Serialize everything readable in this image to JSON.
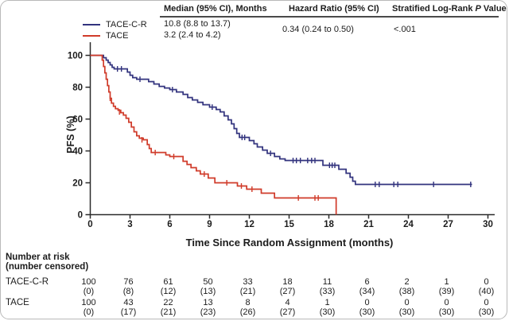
{
  "stats": {
    "headers": {
      "median": "Median (95% CI), Months",
      "hazard_ratio": "Hazard Ratio (95% CI)",
      "logrank_prefix": "Stratified Log-Rank ",
      "logrank_italic": "P",
      "logrank_suffix": " Value"
    },
    "median_tace_cr": "10.8 (8.8 to 13.7)",
    "median_tace": "3.2 (2.4 to 4.2)",
    "hazard_ratio_value": "0.34 (0.24 to 0.50)",
    "p_value": "<.001"
  },
  "legend": [
    {
      "label": "TACE-C-R",
      "color": "#32337e"
    },
    {
      "label": "TACE",
      "color": "#d03b2a"
    }
  ],
  "chart_data": {
    "type": "line",
    "subtype": "kaplan-meier-step",
    "title": "",
    "xlabel": "Time Since Random Assignment (months)",
    "ylabel": "PFS (%)",
    "xlim": [
      0,
      30
    ],
    "ylim": [
      0,
      100
    ],
    "xticks": [
      0,
      3,
      6,
      9,
      12,
      15,
      18,
      21,
      24,
      27,
      30
    ],
    "yticks": [
      0,
      20,
      40,
      60,
      80,
      100
    ],
    "grid": false,
    "legend_position": "top-left",
    "axis_color": "#2a2a2a",
    "series": [
      {
        "name": "TACE-C-R",
        "color": "#32337e",
        "median_months": 10.8,
        "points": [
          [
            0,
            100
          ],
          [
            1.0,
            98.5
          ],
          [
            1.2,
            97
          ],
          [
            1.35,
            95.5
          ],
          [
            1.5,
            94
          ],
          [
            1.65,
            92.5
          ],
          [
            1.8,
            91.5
          ],
          [
            2.8,
            89.5
          ],
          [
            3.0,
            87.5
          ],
          [
            3.2,
            86
          ],
          [
            3.5,
            85
          ],
          [
            4.4,
            83.5
          ],
          [
            4.8,
            82
          ],
          [
            5.2,
            80.5
          ],
          [
            5.6,
            79.5
          ],
          [
            6.0,
            78.5
          ],
          [
            6.5,
            77
          ],
          [
            7.0,
            75.5
          ],
          [
            7.35,
            73.5
          ],
          [
            7.7,
            72
          ],
          [
            8.1,
            70.5
          ],
          [
            8.5,
            69
          ],
          [
            9.0,
            67.5
          ],
          [
            9.5,
            66
          ],
          [
            9.8,
            64.5
          ],
          [
            10.1,
            62
          ],
          [
            10.4,
            59.5
          ],
          [
            10.65,
            57
          ],
          [
            10.85,
            54
          ],
          [
            11.05,
            51
          ],
          [
            11.25,
            48.5
          ],
          [
            12.0,
            46.5
          ],
          [
            12.35,
            44.5
          ],
          [
            12.6,
            42.5
          ],
          [
            13.0,
            40.5
          ],
          [
            13.35,
            38.5
          ],
          [
            13.9,
            36.5
          ],
          [
            14.3,
            35
          ],
          [
            14.7,
            34
          ],
          [
            17.55,
            31
          ],
          [
            18.75,
            28.5
          ],
          [
            19.3,
            26
          ],
          [
            19.6,
            23.5
          ],
          [
            19.8,
            21
          ],
          [
            20.0,
            19
          ],
          [
            28.8,
            19
          ]
        ],
        "censors": [
          [
            2.05,
            91.5
          ],
          [
            2.35,
            91.5
          ],
          [
            3.75,
            85
          ],
          [
            6.2,
            78.5
          ],
          [
            9.2,
            67.5
          ],
          [
            11.45,
            48.5
          ],
          [
            11.65,
            48.5
          ],
          [
            13.6,
            38.5
          ],
          [
            15.3,
            34
          ],
          [
            15.55,
            34
          ],
          [
            15.85,
            34
          ],
          [
            16.4,
            34
          ],
          [
            16.7,
            34
          ],
          [
            16.95,
            34
          ],
          [
            18.05,
            31
          ],
          [
            18.25,
            31
          ],
          [
            18.45,
            31
          ],
          [
            21.5,
            19
          ],
          [
            21.8,
            19
          ],
          [
            22.9,
            19
          ],
          [
            23.2,
            19
          ],
          [
            25.9,
            19
          ],
          [
            28.7,
            19
          ]
        ]
      },
      {
        "name": "TACE",
        "color": "#d03b2a",
        "median_months": 3.2,
        "points": [
          [
            0,
            100
          ],
          [
            0.9,
            97
          ],
          [
            1.0,
            93
          ],
          [
            1.1,
            89
          ],
          [
            1.2,
            85
          ],
          [
            1.3,
            81
          ],
          [
            1.4,
            77
          ],
          [
            1.5,
            73
          ],
          [
            1.6,
            70
          ],
          [
            1.75,
            68
          ],
          [
            1.9,
            66.5
          ],
          [
            2.1,
            65.5
          ],
          [
            2.3,
            64
          ],
          [
            2.5,
            62.5
          ],
          [
            2.7,
            60.5
          ],
          [
            2.9,
            58
          ],
          [
            3.1,
            55
          ],
          [
            3.3,
            52
          ],
          [
            3.5,
            49.5
          ],
          [
            3.7,
            48
          ],
          [
            4.0,
            47
          ],
          [
            4.3,
            44
          ],
          [
            4.45,
            41.5
          ],
          [
            4.6,
            39
          ],
          [
            5.7,
            37.5
          ],
          [
            6.0,
            36.5
          ],
          [
            7.0,
            33.5
          ],
          [
            7.3,
            31.5
          ],
          [
            7.6,
            29.5
          ],
          [
            8.0,
            27.5
          ],
          [
            8.3,
            25.5
          ],
          [
            8.9,
            23
          ],
          [
            9.4,
            20
          ],
          [
            11.1,
            18
          ],
          [
            11.8,
            16
          ],
          [
            12.9,
            13.5
          ],
          [
            13.9,
            10.5
          ],
          [
            18.55,
            0
          ]
        ],
        "censors": [
          [
            1.5,
            73
          ],
          [
            2.2,
            64.5
          ],
          [
            3.9,
            47
          ],
          [
            4.9,
            39
          ],
          [
            6.3,
            36.5
          ],
          [
            8.6,
            25.5
          ],
          [
            10.3,
            20
          ],
          [
            11.4,
            18
          ],
          [
            12.2,
            16
          ],
          [
            15.7,
            10.5
          ],
          [
            16.95,
            10.5
          ],
          [
            17.2,
            10.5
          ]
        ]
      }
    ]
  },
  "risk_table": {
    "title_line1": "Number at risk",
    "title_line2": "(number censored)",
    "time_points": [
      0,
      3,
      6,
      9,
      12,
      15,
      18,
      21,
      24,
      27,
      30
    ],
    "rows": [
      {
        "label": "TACE-C-R",
        "at_risk": [
          "100",
          "76",
          "61",
          "50",
          "33",
          "18",
          "11",
          "6",
          "2",
          "1",
          "0"
        ],
        "censored": [
          "(0)",
          "(8)",
          "(12)",
          "(13)",
          "(21)",
          "(27)",
          "(33)",
          "(34)",
          "(38)",
          "(39)",
          "(40)"
        ]
      },
      {
        "label": "TACE",
        "at_risk": [
          "100",
          "43",
          "22",
          "13",
          "8",
          "4",
          "1",
          "0",
          "0",
          "0",
          "0"
        ],
        "censored": [
          "(0)",
          "(17)",
          "(21)",
          "(23)",
          "(26)",
          "(27)",
          "(30)",
          "(30)",
          "(30)",
          "(30)",
          "(30)"
        ]
      }
    ]
  }
}
